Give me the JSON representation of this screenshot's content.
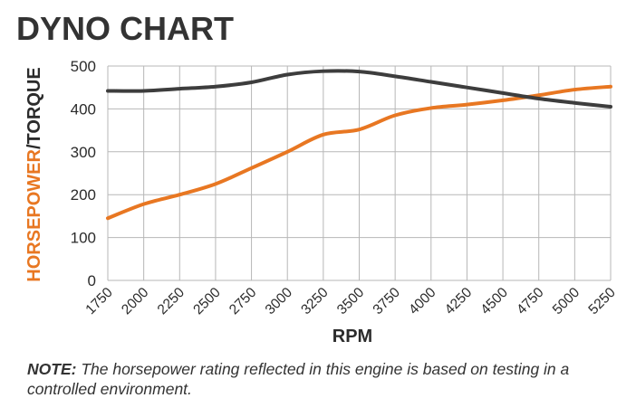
{
  "chart_data": {
    "type": "line",
    "title": "DYNO CHART",
    "xlabel": "RPM",
    "ylabel_part1": "HORSEPOWER",
    "ylabel_sep": "/",
    "ylabel_part2": "TORQUE",
    "x": [
      1750,
      2000,
      2250,
      2500,
      2750,
      3000,
      3250,
      3500,
      3750,
      4000,
      4250,
      4500,
      4750,
      5000,
      5250
    ],
    "xlim": [
      1750,
      5250
    ],
    "ylim": [
      0,
      500
    ],
    "yticks": [
      0,
      100,
      200,
      300,
      400,
      500
    ],
    "grid": true,
    "legend": "none",
    "series": [
      {
        "color": "#e87722",
        "values": [
          145,
          178,
          200,
          225,
          262,
          300,
          340,
          352,
          385,
          402,
          410,
          420,
          432,
          445,
          452
        ]
      },
      {
        "color": "#3d3d3d",
        "values": [
          442,
          442,
          447,
          452,
          462,
          480,
          488,
          487,
          476,
          463,
          450,
          437,
          424,
          414,
          405
        ]
      }
    ]
  },
  "note": {
    "label": "NOTE:",
    "text": " The horsepower rating reflected in this engine is based on testing in a controlled environment."
  }
}
